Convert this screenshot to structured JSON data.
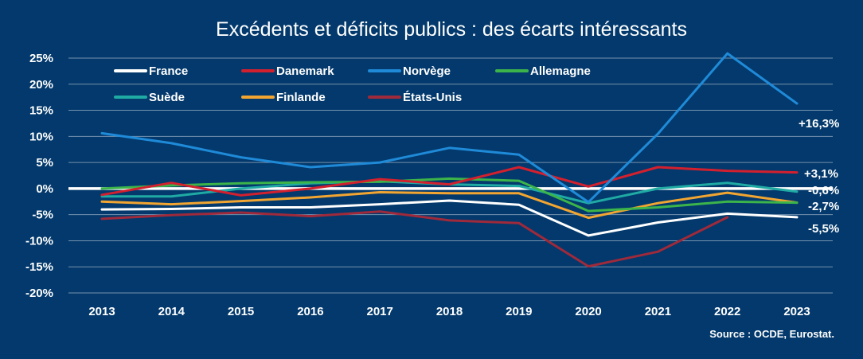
{
  "chart_data": {
    "type": "line",
    "title": "Excédents et déficits publics : des écarts intéressants",
    "source": "Source : OCDE, Eurostat.",
    "x": [
      "2013",
      "2014",
      "2015",
      "2016",
      "2017",
      "2018",
      "2019",
      "2020",
      "2021",
      "2022",
      "2023"
    ],
    "ylim": [
      -20,
      25
    ],
    "yticks": [
      25,
      20,
      15,
      10,
      5,
      0,
      -5,
      -10,
      -15,
      -20
    ],
    "ytick_labels": [
      "25%",
      "20%",
      "15%",
      "10%",
      "5%",
      "0%",
      "-5%",
      "-10%",
      "-15%",
      "-20%"
    ],
    "grid": true,
    "legend": "top-left",
    "series": [
      {
        "name": "France",
        "color": "#ffffff",
        "values": [
          -4.0,
          -3.9,
          -3.6,
          -3.6,
          -3.0,
          -2.3,
          -3.1,
          -9.0,
          -6.5,
          -4.8,
          -5.5
        ],
        "end_label": "-5,5%"
      },
      {
        "name": "Danemark",
        "color": "#d3202e",
        "values": [
          -1.2,
          1.1,
          -1.3,
          0.0,
          1.8,
          0.8,
          4.1,
          0.4,
          4.1,
          3.4,
          3.1
        ],
        "end_label": "+3,1%"
      },
      {
        "name": "Norvège",
        "color": "#1f8ad8",
        "values": [
          10.6,
          8.7,
          6.0,
          4.1,
          5.0,
          7.8,
          6.5,
          -2.6,
          10.5,
          25.9,
          16.3
        ],
        "end_label": "+16,3%"
      },
      {
        "name": "Allemagne",
        "color": "#3cb44a",
        "values": [
          0.0,
          0.6,
          1.0,
          1.2,
          1.3,
          1.9,
          1.5,
          -4.3,
          -3.6,
          -2.5,
          -2.7
        ],
        "end_label": "-2,7%"
      },
      {
        "name": "Suède",
        "color": "#1faaa4",
        "values": [
          -1.5,
          -1.5,
          0.0,
          1.0,
          1.4,
          0.8,
          0.5,
          -2.8,
          0.0,
          1.1,
          -0.6
        ],
        "end_label": "-0,6%"
      },
      {
        "name": "Finlande",
        "color": "#f2a531",
        "values": [
          -2.5,
          -3.0,
          -2.4,
          -1.7,
          -0.7,
          -0.9,
          -0.9,
          -5.6,
          -2.8,
          -0.8,
          -2.7
        ],
        "end_label": ""
      },
      {
        "name": "États-Unis",
        "color": "#9e2a3b",
        "values": [
          -5.8,
          -5.1,
          -4.6,
          -5.3,
          -4.4,
          -6.1,
          -6.6,
          -14.9,
          -12.1,
          -5.5,
          null
        ],
        "end_label": ""
      }
    ]
  }
}
